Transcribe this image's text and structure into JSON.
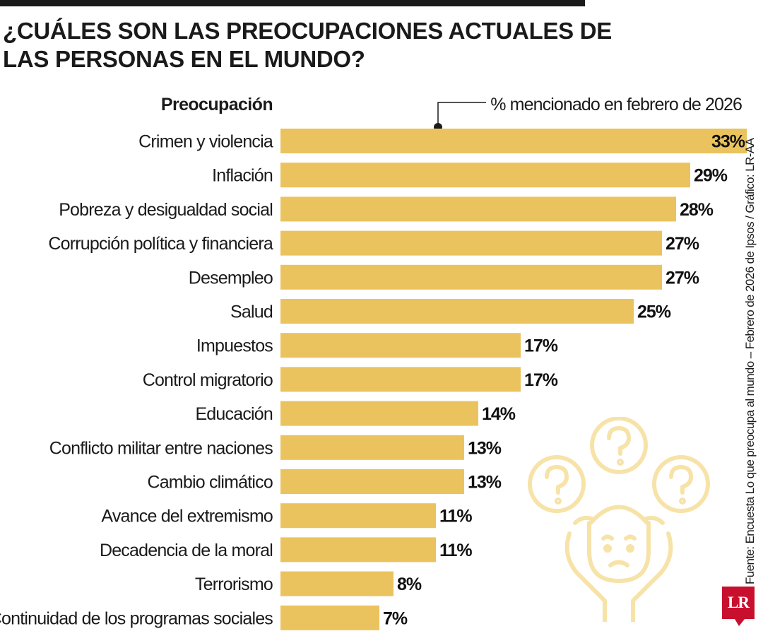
{
  "title": "¿CUÁLES SON LAS PREOCUPACIONES ACTUALES DE LAS PERSONAS EN EL MUNDO?",
  "source": "Fuente: Encuesta Lo que preocupa al mundo – Febrero de 2026 de Ipsos / Gráfico: LR-AA",
  "logo": "LR",
  "colors": {
    "bar": "#EBC35E",
    "text": "#1a1a1a",
    "illustration": "#F7E3A8",
    "logo": "#c8102e"
  },
  "icons": {
    "illustration": "worried-person-with-question-marks-icon"
  },
  "chart_data": {
    "type": "bar",
    "orientation": "horizontal",
    "title": "¿CUÁLES SON LAS PREOCUPACIONES ACTUALES DE LAS PERSONAS EN EL MUNDO?",
    "category_header": "Preocupación",
    "value_header": "% mencionado en febrero de 2026",
    "value_suffix": "%",
    "categories": [
      "Crimen y violencia",
      "Inflación",
      "Pobreza y desigualdad social",
      "Corrupción política y financiera",
      "Desempleo",
      "Salud",
      "Impuestos",
      "Control migratorio",
      "Educación",
      "Conflicto militar entre naciones",
      "Cambio climático",
      "Avance del extremismo",
      "Decadencia de la moral",
      "Terrorismo",
      "Continuidad de los programas sociales"
    ],
    "values": [
      33,
      29,
      28,
      27,
      27,
      25,
      17,
      17,
      14,
      13,
      13,
      11,
      11,
      8,
      7
    ],
    "xlim": [
      0,
      33
    ],
    "grid": false,
    "legend": "none"
  }
}
